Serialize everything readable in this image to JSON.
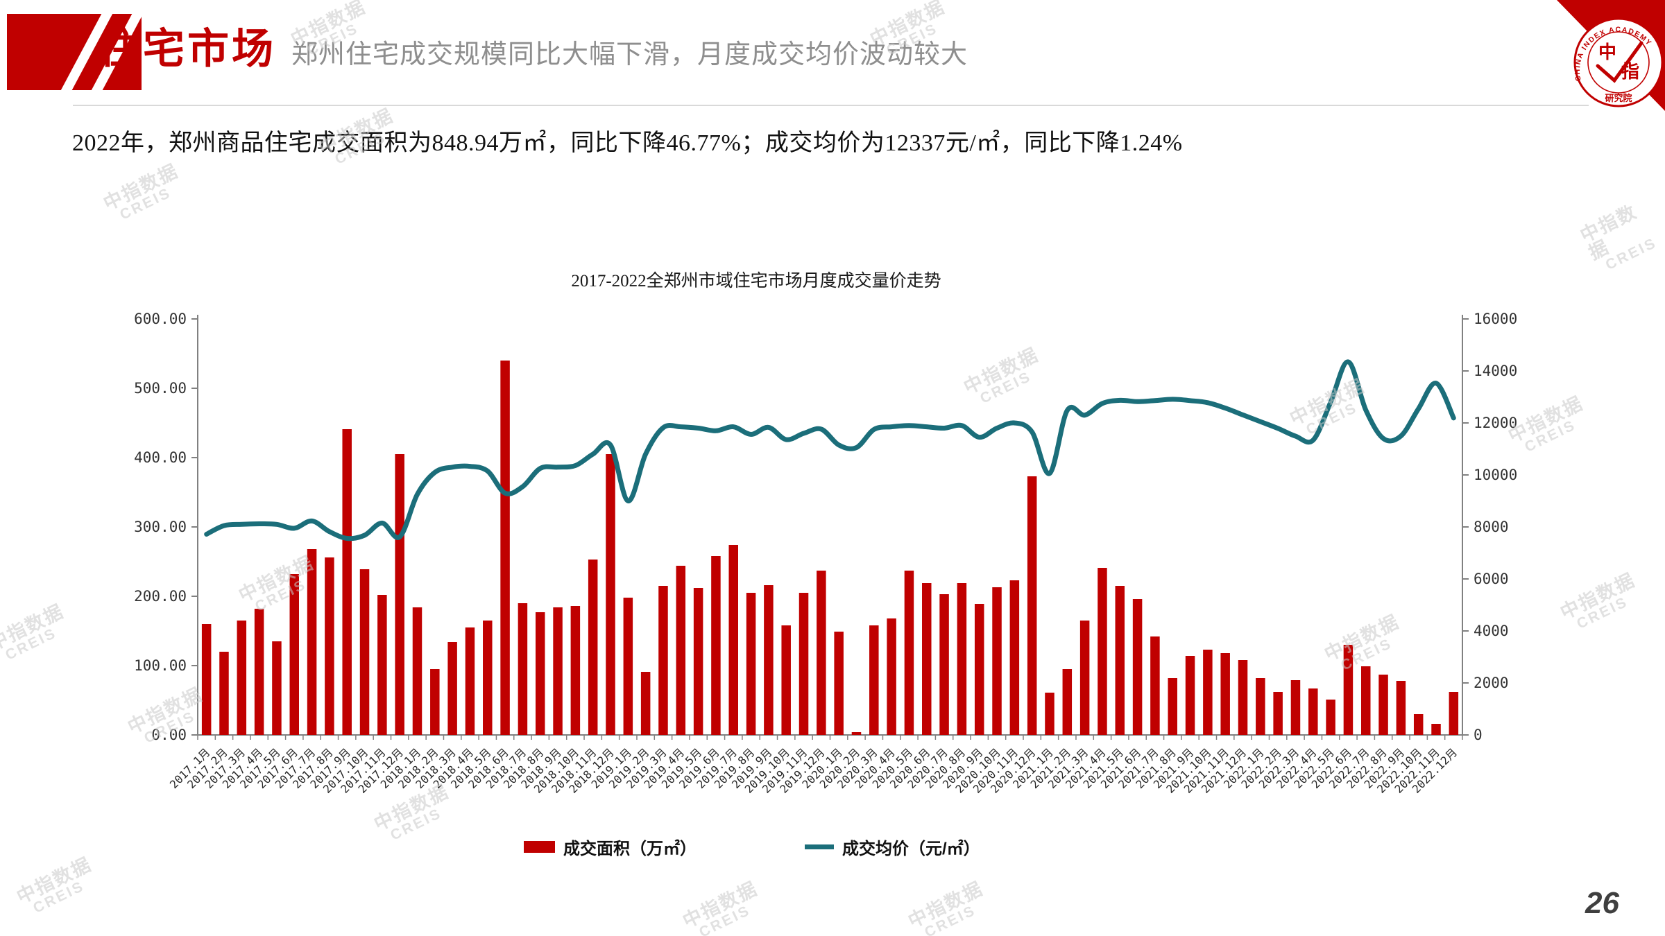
{
  "header": {
    "title": "住宅市场",
    "subtitle": "郑州住宅成交规模同比大幅下滑，月度成交均价波动较大"
  },
  "logo": {
    "arc_text": "CHINA INDEX ACADEMY",
    "char_top": "中",
    "char_bottom": "指",
    "bottom_text": "研究院"
  },
  "watermark": {
    "line1": "中指数据",
    "line2": "CREIS"
  },
  "summary": "2022年，郑州商品住宅成交面积为848.94万㎡，同比下降46.77%；成交均价为12337元/㎡，同比下降1.24%",
  "page_number": "26",
  "chart_data": {
    "type": "bar",
    "title": "2017-2022全郑州市域住宅市场月度成交量价走势",
    "grid": false,
    "legend_position": "bottom",
    "categories": [
      "2017.1月",
      "2017.2月",
      "2017.3月",
      "2017.4月",
      "2017.5月",
      "2017.6月",
      "2017.7月",
      "2017.8月",
      "2017.9月",
      "2017.10月",
      "2017.11月",
      "2017.12月",
      "2018.1月",
      "2018.2月",
      "2018.3月",
      "2018.4月",
      "2018.5月",
      "2018.6月",
      "2018.7月",
      "2018.8月",
      "2018.9月",
      "2018.10月",
      "2018.11月",
      "2018.12月",
      "2019.1月",
      "2019.2月",
      "2019.3月",
      "2019.4月",
      "2019.5月",
      "2019.6月",
      "2019.7月",
      "2019.8月",
      "2019.9月",
      "2019.10月",
      "2019.11月",
      "2019.12月",
      "2020.1月",
      "2020.2月",
      "2020.3月",
      "2020.4月",
      "2020.5月",
      "2020.6月",
      "2020.7月",
      "2020.8月",
      "2020.9月",
      "2020.10月",
      "2020.11月",
      "2020.12月",
      "2021.1月",
      "2021.2月",
      "2021.3月",
      "2021.4月",
      "2021.5月",
      "2021.6月",
      "2021.7月",
      "2021.8月",
      "2021.9月",
      "2021.10月",
      "2021.11月",
      "2021.12月",
      "2022.1月",
      "2022.2月",
      "2022.3月",
      "2022.4月",
      "2022.5月",
      "2022.6月",
      "2022.7月",
      "2022.8月",
      "2022.9月",
      "2022.10月",
      "2022.11月",
      "2022.12月"
    ],
    "series": [
      {
        "name": "成交面积（万㎡）",
        "type": "bar",
        "axis": "left",
        "color": "#C00000",
        "values": [
          160,
          120,
          165,
          182,
          135,
          232,
          268,
          256,
          441,
          239,
          202,
          405,
          184,
          95,
          134,
          155,
          165,
          540,
          190,
          177,
          184,
          186,
          253,
          405,
          198,
          91,
          215,
          244,
          212,
          258,
          274,
          205,
          216,
          158,
          205,
          237,
          149,
          4,
          158,
          168,
          237,
          219,
          203,
          219,
          189,
          213,
          223,
          373,
          61,
          95,
          165,
          241,
          215,
          196,
          142,
          82,
          114,
          123,
          118,
          108,
          82,
          62,
          79,
          67,
          51,
          130,
          99,
          87,
          78,
          30,
          16,
          62
        ]
      },
      {
        "name": "成交均价（元/㎡）",
        "type": "line",
        "axis": "right",
        "color": "#1B6E7A",
        "values": [
          7720,
          8050,
          8100,
          8120,
          8100,
          7950,
          8230,
          7820,
          7560,
          7680,
          8150,
          7620,
          9250,
          10100,
          10300,
          10330,
          10150,
          9300,
          9550,
          10250,
          10300,
          10360,
          10800,
          11150,
          9000,
          10800,
          11820,
          11850,
          11800,
          11700,
          11850,
          11560,
          11830,
          11360,
          11600,
          11760,
          11150,
          11050,
          11750,
          11850,
          11900,
          11850,
          11800,
          11900,
          11450,
          11800,
          12000,
          11650,
          10060,
          12480,
          12300,
          12750,
          12870,
          12820,
          12860,
          12910,
          12860,
          12780,
          12570,
          12310,
          12050,
          11790,
          11490,
          11340,
          12800,
          14350,
          12500,
          11400,
          11500,
          12550,
          13530,
          12190
        ]
      }
    ],
    "left_axis": {
      "min": 0,
      "max": 600,
      "tick_labels": [
        "600.00",
        "500.00",
        "400.00",
        "300.00",
        "200.00",
        "100.00",
        "0.00"
      ]
    },
    "right_axis": {
      "min": 0,
      "max": 16000,
      "tick_labels": [
        "16000",
        "14000",
        "12000",
        "10000",
        "8000",
        "6000",
        "4000",
        "2000",
        "0"
      ]
    }
  }
}
